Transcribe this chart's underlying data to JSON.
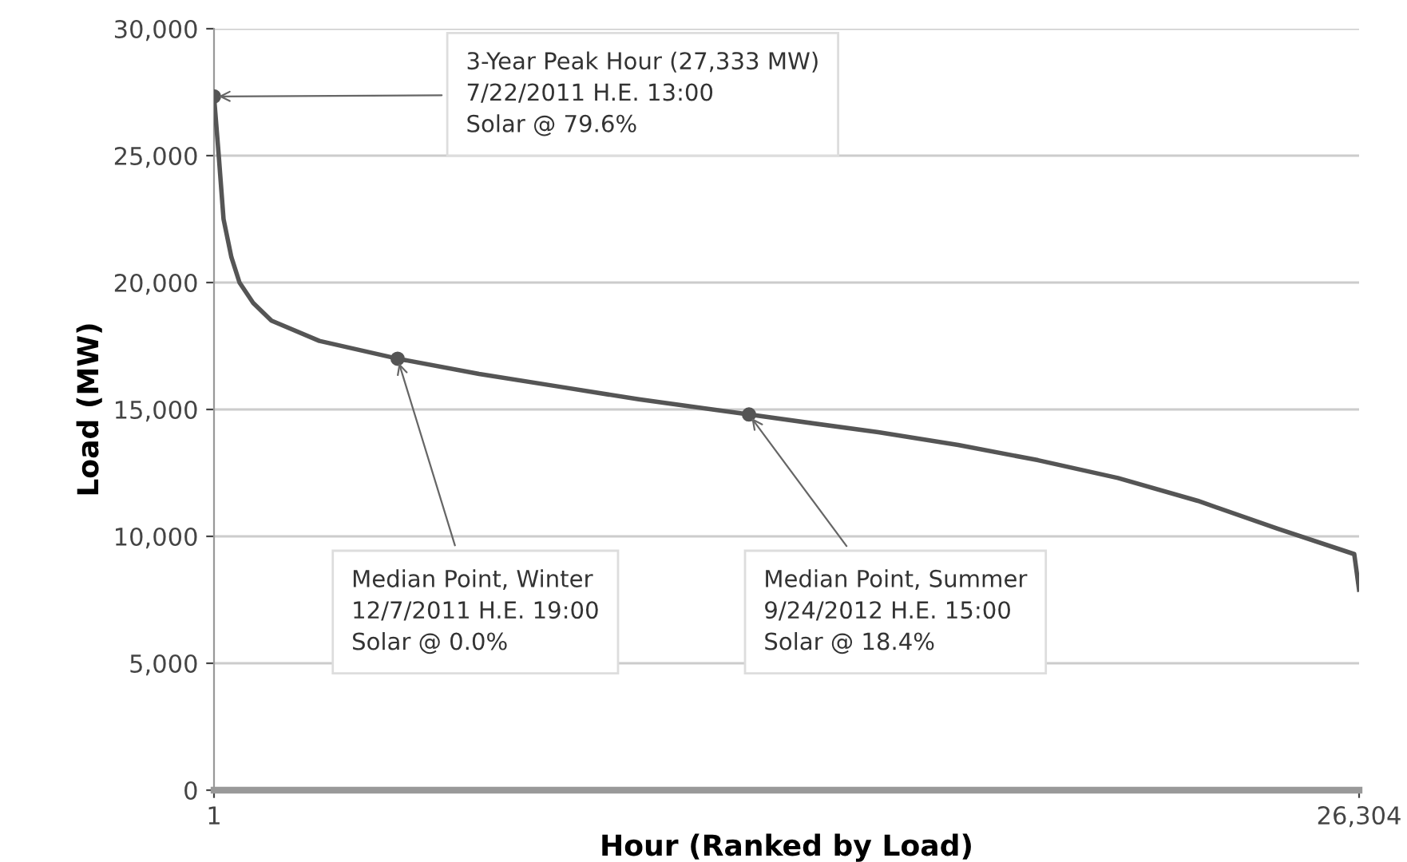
{
  "chart_data": {
    "type": "line",
    "xlabel": "Hour (Ranked by Load)",
    "ylabel": "Load (MW)",
    "series": [
      {
        "color": "#555555",
        "x": [
          1,
          110,
          220,
          400,
          587,
          900,
          1321,
          2421,
          4219,
          6090,
          7924,
          9758,
          12290,
          15261,
          17095,
          18929,
          20764,
          22598,
          24432,
          26193,
          26304
        ],
        "values": [
          27333,
          25000,
          22500,
          21000,
          20000,
          19200,
          18500,
          17700,
          17000,
          16400,
          15900,
          15400,
          14800,
          14100,
          13600,
          13000,
          12300,
          11400,
          10300,
          9300,
          7900
        ]
      },
      {
        "type": "scatter",
        "color": "#555555",
        "marker": "circle",
        "x": [
          1,
          4219,
          12290
        ],
        "values": [
          27333,
          17000,
          14800
        ]
      }
    ],
    "xlim": [
      1,
      26304
    ],
    "xticks": [
      1,
      {
        "value": 26304,
        "label": "26,304"
      }
    ],
    "ylim": [
      0,
      30000
    ],
    "yticks": [
      0,
      {
        "value": 5000,
        "label": "5,000"
      },
      {
        "value": 10000,
        "label": "10,000"
      },
      {
        "value": 15000,
        "label": "15,000"
      },
      {
        "value": 20000,
        "label": "20,000"
      },
      {
        "value": 25000,
        "label": "25,000"
      },
      {
        "value": 30000,
        "label": "30,000"
      }
    ],
    "grid": "y",
    "annotations": [
      {
        "text": "3-Year Peak Hour (27,333 MW)\n7/22/2011 H.E. 13:00\nSolar @ 79.6%",
        "x": 1,
        "y": 27333
      },
      {
        "text": "Median Point, Winter\n12/7/2011 H.E. 19:00\nSolar @ 0.0%",
        "x": 4219,
        "y": 17000
      },
      {
        "text": "Median Point, Summer\n9/24/2012 H.E. 15:00\nSolar @ 18.4%",
        "x": 12290,
        "y": 14800
      }
    ]
  }
}
